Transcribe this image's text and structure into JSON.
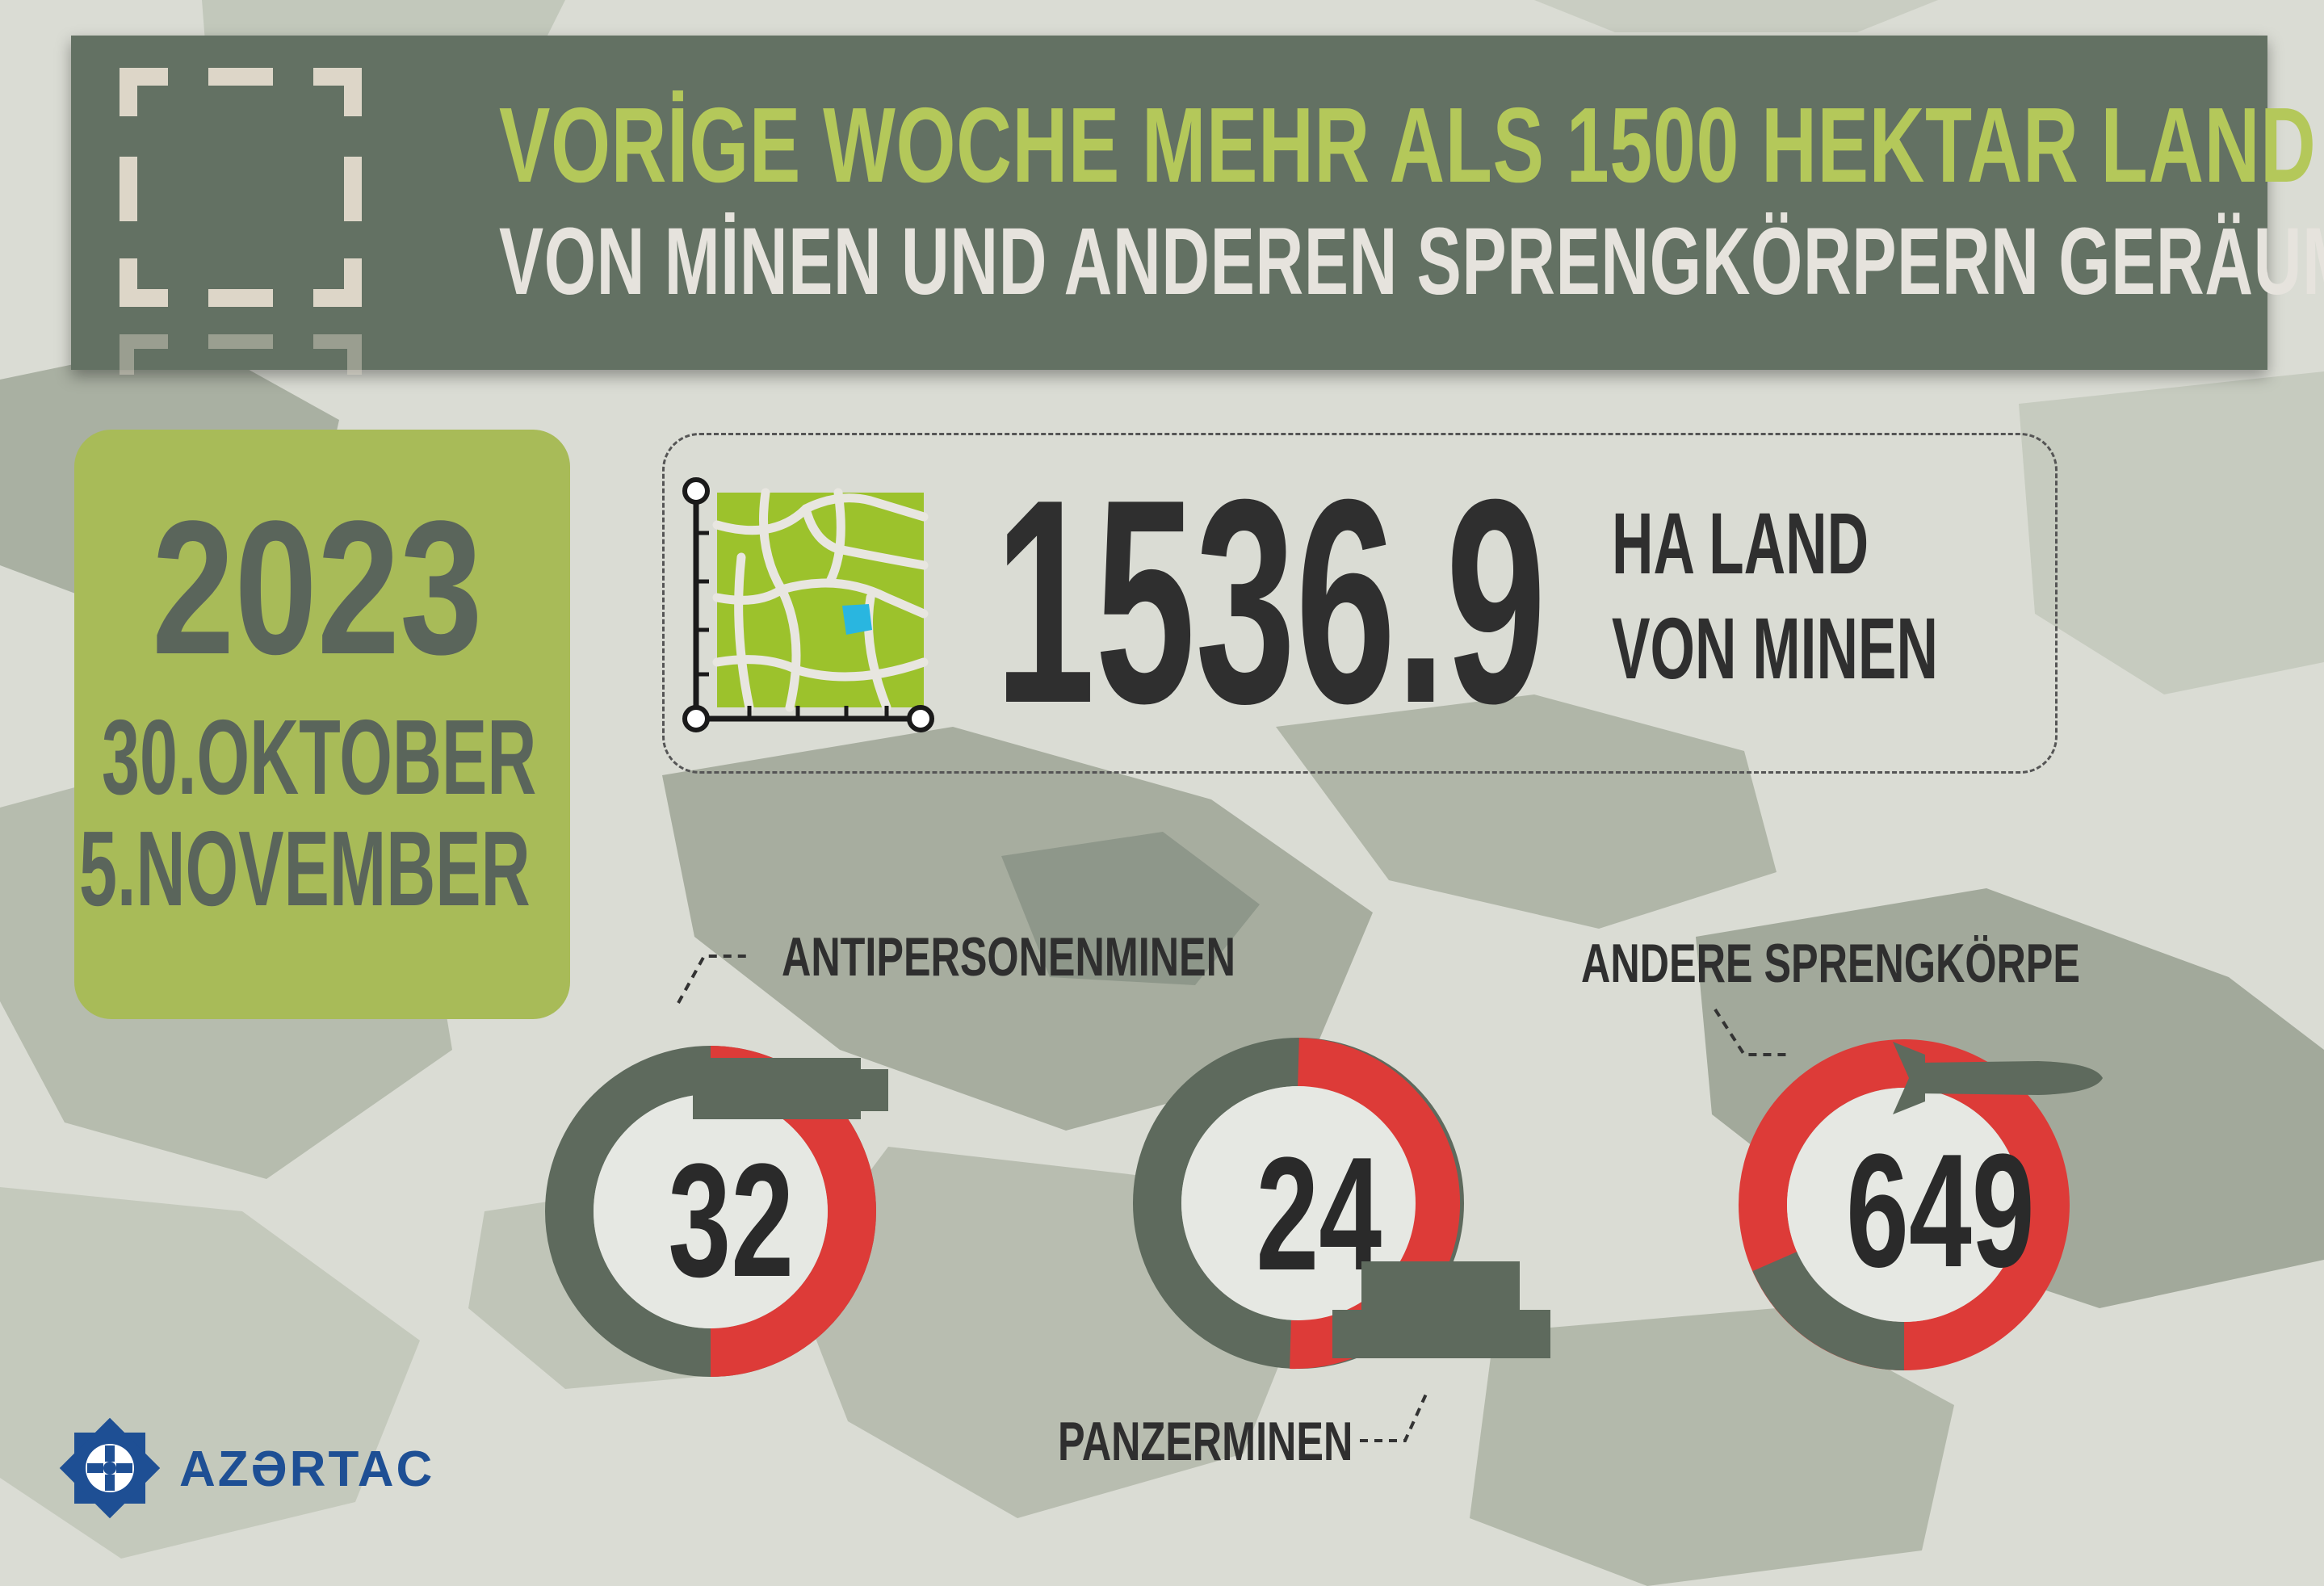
{
  "header": {
    "title_line1": "VORİGE WOCHE MEHR ALS 1500 HEKTAR LAND",
    "title_line2": "VON MİNEN UND ANDEREN SPRENGKÖRPERN GERÄUMT"
  },
  "period": {
    "year": "2023",
    "start": "30.OKTOBER",
    "end": "5.NOVEMBER"
  },
  "area": {
    "value": "1536.9",
    "unit_line1": "HA LAND",
    "unit_line2": "VON MINEN"
  },
  "categories": [
    {
      "label": "ANTIPERSONENMINEN",
      "count": "32",
      "icon": "antipersonnel-mine-icon"
    },
    {
      "label": "PANZERMINEN",
      "count": "24",
      "icon": "anti-tank-mine-icon"
    },
    {
      "label": "ANDERE SPRENGKÖRPE",
      "count": "649",
      "icon": "bomb-icon"
    }
  ],
  "logo": {
    "text": "AZƏRTAC"
  },
  "colors": {
    "header_bg": "#637163",
    "title_accent": "#b4c85a",
    "date_box": "#a8bb58",
    "gauge_red": "#dd3b38",
    "gauge_gray": "#5e6a5d",
    "logo_blue": "#1e4f94"
  }
}
